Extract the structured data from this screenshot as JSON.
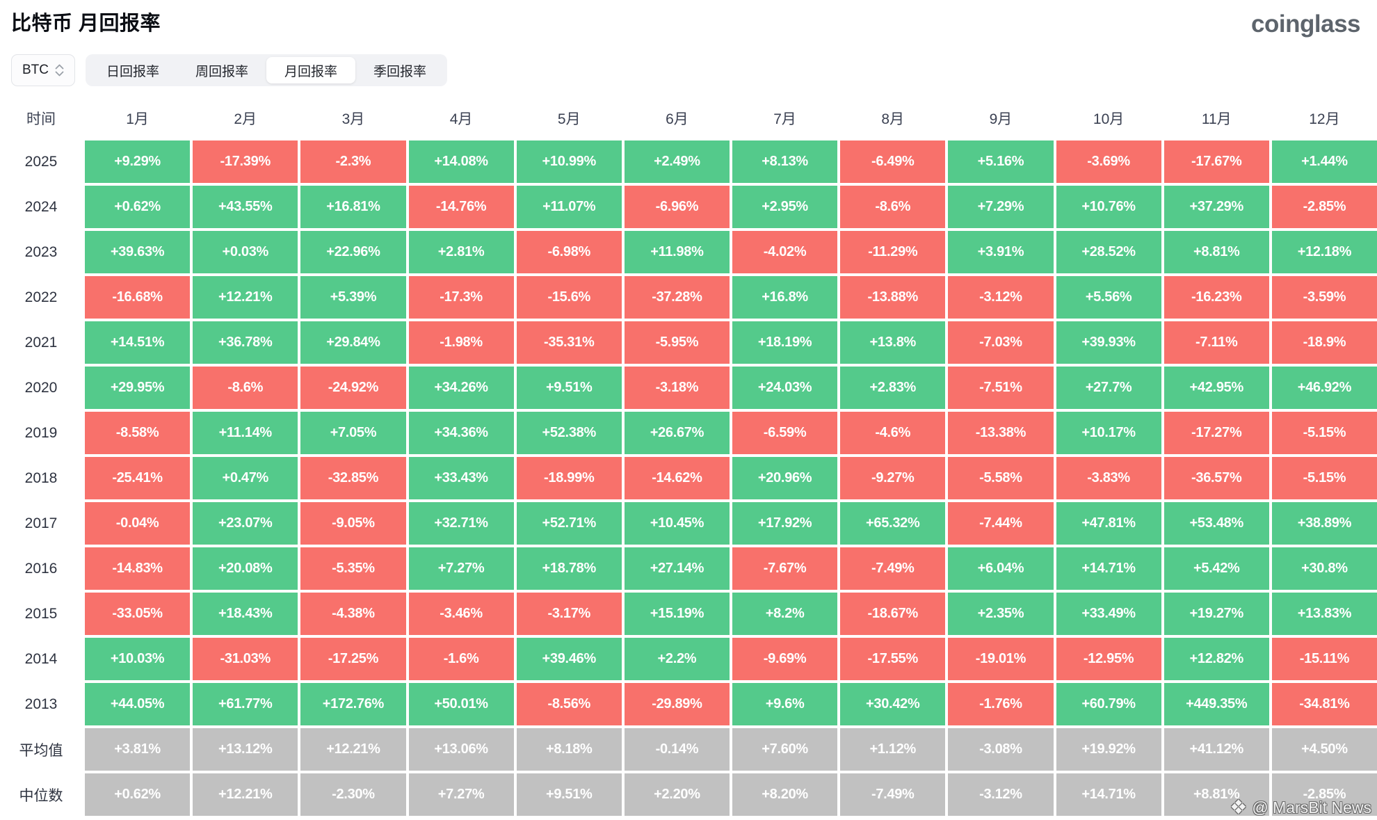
{
  "page": {
    "title": "比特币 月回报率",
    "brand": "coinglass"
  },
  "controls": {
    "symbol_select": {
      "value": "BTC"
    },
    "tabs": [
      {
        "id": "daily-returns",
        "label": "日回报率",
        "active": false
      },
      {
        "id": "weekly-returns",
        "label": "周回报率",
        "active": false
      },
      {
        "id": "monthly-returns",
        "label": "月回报率",
        "active": true
      },
      {
        "id": "quarterly-returns",
        "label": "季回报率",
        "active": false
      }
    ]
  },
  "chart_data": {
    "type": "heatmap",
    "title": "比特币 月回报率",
    "row_header": "时间",
    "columns": [
      "1月",
      "2月",
      "3月",
      "4月",
      "5月",
      "6月",
      "7月",
      "8月",
      "9月",
      "10月",
      "11月",
      "12月"
    ],
    "rows": [
      {
        "label": "2025",
        "kind": "year",
        "values": [
          "+9.29%",
          "-17.39%",
          "-2.3%",
          "+14.08%",
          "+10.99%",
          "+2.49%",
          "+8.13%",
          "-6.49%",
          "+5.16%",
          "-3.69%",
          "-17.67%",
          "+1.44%"
        ]
      },
      {
        "label": "2024",
        "kind": "year",
        "values": [
          "+0.62%",
          "+43.55%",
          "+16.81%",
          "-14.76%",
          "+11.07%",
          "-6.96%",
          "+2.95%",
          "-8.6%",
          "+7.29%",
          "+10.76%",
          "+37.29%",
          "-2.85%"
        ]
      },
      {
        "label": "2023",
        "kind": "year",
        "values": [
          "+39.63%",
          "+0.03%",
          "+22.96%",
          "+2.81%",
          "-6.98%",
          "+11.98%",
          "-4.02%",
          "-11.29%",
          "+3.91%",
          "+28.52%",
          "+8.81%",
          "+12.18%"
        ]
      },
      {
        "label": "2022",
        "kind": "year",
        "values": [
          "-16.68%",
          "+12.21%",
          "+5.39%",
          "-17.3%",
          "-15.6%",
          "-37.28%",
          "+16.8%",
          "-13.88%",
          "-3.12%",
          "+5.56%",
          "-16.23%",
          "-3.59%"
        ]
      },
      {
        "label": "2021",
        "kind": "year",
        "values": [
          "+14.51%",
          "+36.78%",
          "+29.84%",
          "-1.98%",
          "-35.31%",
          "-5.95%",
          "+18.19%",
          "+13.8%",
          "-7.03%",
          "+39.93%",
          "-7.11%",
          "-18.9%"
        ]
      },
      {
        "label": "2020",
        "kind": "year",
        "values": [
          "+29.95%",
          "-8.6%",
          "-24.92%",
          "+34.26%",
          "+9.51%",
          "-3.18%",
          "+24.03%",
          "+2.83%",
          "-7.51%",
          "+27.7%",
          "+42.95%",
          "+46.92%"
        ]
      },
      {
        "label": "2019",
        "kind": "year",
        "values": [
          "-8.58%",
          "+11.14%",
          "+7.05%",
          "+34.36%",
          "+52.38%",
          "+26.67%",
          "-6.59%",
          "-4.6%",
          "-13.38%",
          "+10.17%",
          "-17.27%",
          "-5.15%"
        ]
      },
      {
        "label": "2018",
        "kind": "year",
        "values": [
          "-25.41%",
          "+0.47%",
          "-32.85%",
          "+33.43%",
          "-18.99%",
          "-14.62%",
          "+20.96%",
          "-9.27%",
          "-5.58%",
          "-3.83%",
          "-36.57%",
          "-5.15%"
        ]
      },
      {
        "label": "2017",
        "kind": "year",
        "values": [
          "-0.04%",
          "+23.07%",
          "-9.05%",
          "+32.71%",
          "+52.71%",
          "+10.45%",
          "+17.92%",
          "+65.32%",
          "-7.44%",
          "+47.81%",
          "+53.48%",
          "+38.89%"
        ]
      },
      {
        "label": "2016",
        "kind": "year",
        "values": [
          "-14.83%",
          "+20.08%",
          "-5.35%",
          "+7.27%",
          "+18.78%",
          "+27.14%",
          "-7.67%",
          "-7.49%",
          "+6.04%",
          "+14.71%",
          "+5.42%",
          "+30.8%"
        ]
      },
      {
        "label": "2015",
        "kind": "year",
        "values": [
          "-33.05%",
          "+18.43%",
          "-4.38%",
          "-3.46%",
          "-3.17%",
          "+15.19%",
          "+8.2%",
          "-18.67%",
          "+2.35%",
          "+33.49%",
          "+19.27%",
          "+13.83%"
        ]
      },
      {
        "label": "2014",
        "kind": "year",
        "values": [
          "+10.03%",
          "-31.03%",
          "-17.25%",
          "-1.6%",
          "+39.46%",
          "+2.2%",
          "-9.69%",
          "-17.55%",
          "-19.01%",
          "-12.95%",
          "+12.82%",
          "-15.11%"
        ]
      },
      {
        "label": "2013",
        "kind": "year",
        "values": [
          "+44.05%",
          "+61.77%",
          "+172.76%",
          "+50.01%",
          "-8.56%",
          "-29.89%",
          "+9.6%",
          "+30.42%",
          "-1.76%",
          "+60.79%",
          "+449.35%",
          "-34.81%"
        ]
      },
      {
        "label": "平均值",
        "kind": "summary",
        "values": [
          "+3.81%",
          "+13.12%",
          "+12.21%",
          "+13.06%",
          "+8.18%",
          "-0.14%",
          "+7.60%",
          "+1.12%",
          "-3.08%",
          "+19.92%",
          "+41.12%",
          "+4.50%"
        ]
      },
      {
        "label": "中位数",
        "kind": "summary",
        "values": [
          "+0.62%",
          "+12.21%",
          "-2.30%",
          "+7.27%",
          "+9.51%",
          "+2.20%",
          "+8.20%",
          "-7.49%",
          "-3.12%",
          "+14.71%",
          "+8.81%",
          "-2.85%"
        ]
      }
    ],
    "colors": {
      "positive": "#54CA8B",
      "negative": "#F8716B",
      "summary": "#C1C1C1"
    }
  },
  "watermark": {
    "icon": "diamond-cluster-icon",
    "text": "@ MarsBit News"
  }
}
